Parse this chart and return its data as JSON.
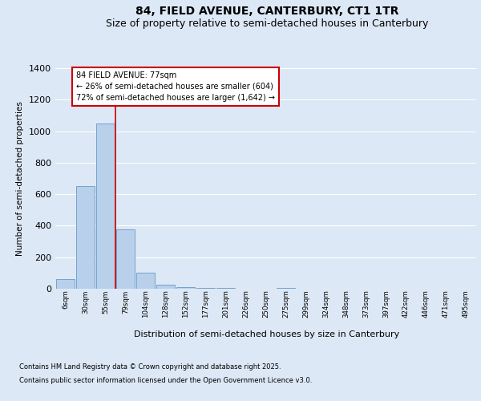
{
  "title_line1": "84, FIELD AVENUE, CANTERBURY, CT1 1TR",
  "title_line2": "Size of property relative to semi-detached houses in Canterbury",
  "xlabel": "Distribution of semi-detached houses by size in Canterbury",
  "ylabel": "Number of semi-detached properties",
  "annotation_title": "84 FIELD AVENUE: 77sqm",
  "annotation_line2": "← 26% of semi-detached houses are smaller (604)",
  "annotation_line3": "72% of semi-detached houses are larger (1,642) →",
  "footer_line1": "Contains HM Land Registry data © Crown copyright and database right 2025.",
  "footer_line2": "Contains public sector information licensed under the Open Government Licence v3.0.",
  "categories": [
    "6sqm",
    "30sqm",
    "55sqm",
    "79sqm",
    "104sqm",
    "128sqm",
    "152sqm",
    "177sqm",
    "201sqm",
    "226sqm",
    "250sqm",
    "275sqm",
    "299sqm",
    "324sqm",
    "348sqm",
    "373sqm",
    "397sqm",
    "422sqm",
    "446sqm",
    "471sqm",
    "495sqm"
  ],
  "values": [
    60,
    650,
    1050,
    375,
    100,
    25,
    10,
    5,
    5,
    0,
    0,
    5,
    0,
    0,
    0,
    0,
    0,
    0,
    0,
    0,
    0
  ],
  "bar_color": "#b8d0ea",
  "bar_edge_color": "#6699cc",
  "vline_x": 2.5,
  "vline_color": "#cc0000",
  "annotation_box_edge": "#cc0000",
  "background_color": "#dce8f5",
  "plot_bg_color": "#dce8f5",
  "ylim": [
    0,
    1400
  ],
  "yticks": [
    0,
    200,
    400,
    600,
    800,
    1000,
    1200,
    1400
  ],
  "grid_color": "#ffffff",
  "title_fontsize": 10,
  "subtitle_fontsize": 9,
  "ann_fontsize": 7,
  "footer_fontsize": 6
}
